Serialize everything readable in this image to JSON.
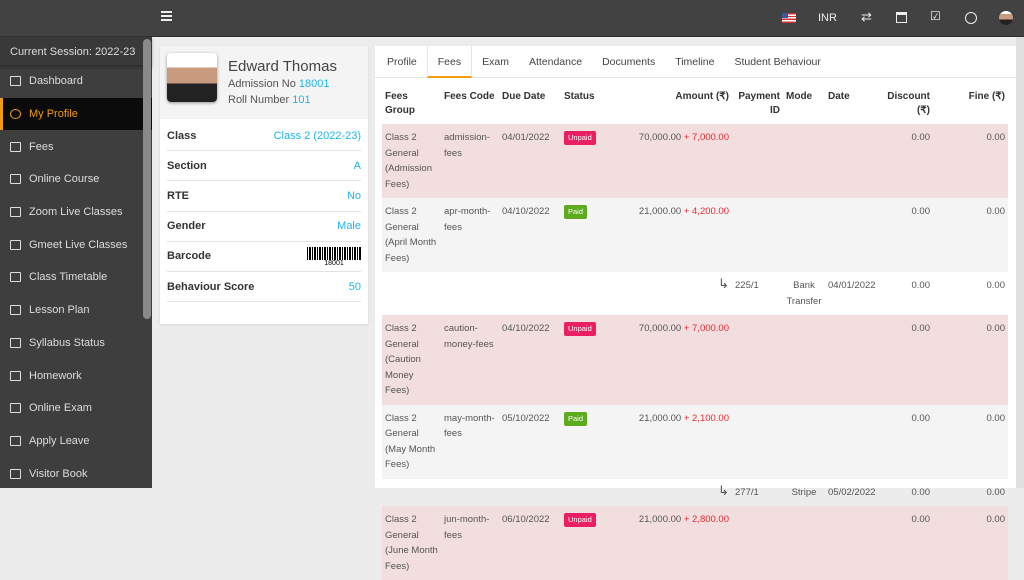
{
  "topbar": {
    "currency": "INR",
    "icons": [
      "us-flag-icon",
      "exchange-icon",
      "calendar-icon",
      "task-check-icon",
      "whatsapp-icon",
      "user-avatar-icon"
    ]
  },
  "sidebar": {
    "session": "Current Session: 2022-23",
    "items": [
      {
        "label": "Dashboard",
        "icon": "monitor-icon"
      },
      {
        "label": "My Profile",
        "icon": "user-plus-icon",
        "active": true
      },
      {
        "label": "Fees",
        "icon": "money-icon"
      },
      {
        "label": "Online Course",
        "icon": "file-image-icon"
      },
      {
        "label": "Zoom Live Classes",
        "icon": "video-icon"
      },
      {
        "label": "Gmeet Live Classes",
        "icon": "video-icon"
      },
      {
        "label": "Class Timetable",
        "icon": "calendar-icon"
      },
      {
        "label": "Lesson Plan",
        "icon": "list-icon"
      },
      {
        "label": "Syllabus Status",
        "icon": "list-check-icon"
      },
      {
        "label": "Homework",
        "icon": "flask-icon"
      },
      {
        "label": "Online Exam",
        "icon": "rss-icon"
      },
      {
        "label": "Apply Leave",
        "icon": "check-square-icon"
      },
      {
        "label": "Visitor Book",
        "icon": "check-square-icon"
      }
    ]
  },
  "profile": {
    "name": "Edward Thomas",
    "admission_label": "Admission No",
    "admission_no": "18001",
    "roll_label": "Roll Number",
    "roll_no": "101",
    "rows": [
      {
        "label": "Class",
        "value": "Class 2 (2022-23)"
      },
      {
        "label": "Section",
        "value": "A"
      },
      {
        "label": "RTE",
        "value": "No"
      },
      {
        "label": "Gender",
        "value": "Male"
      },
      {
        "label": "Barcode",
        "value": "18001"
      },
      {
        "label": "Behaviour Score",
        "value": "50"
      }
    ]
  },
  "tabs": [
    "Profile",
    "Fees",
    "Exam",
    "Attendance",
    "Documents",
    "Timeline",
    "Student Behaviour"
  ],
  "active_tab": "Fees",
  "fees": {
    "headers": [
      "Fees Group",
      "Fees Code",
      "Due Date",
      "Status",
      "Amount (₹)",
      "Payment ID",
      "Mode",
      "Date",
      "Discount (₹)",
      "Fine (₹)"
    ],
    "rows": [
      {
        "type": "fee",
        "group": "Class 2 General (Admission Fees)",
        "code": "admission-fees",
        "due": "04/01/2022",
        "status": "Unpaid",
        "amount": "70,000.00",
        "extra": "+ 7,000.00",
        "discount": "0.00",
        "fine": "0.00"
      },
      {
        "type": "fee",
        "group": "Class 2 General (April Month Fees)",
        "code": "apr-month-fees",
        "due": "04/10/2022",
        "status": "Paid",
        "amount": "21,000.00",
        "extra": "+ 4,200.00",
        "discount": "0.00",
        "fine": "0.00"
      },
      {
        "type": "payment",
        "payment_id": "225/1",
        "mode": "Bank Transfer",
        "date": "04/01/2022",
        "discount": "0.00",
        "fine": "0.00"
      },
      {
        "type": "fee",
        "group": "Class 2 General (Caution Money Fees)",
        "code": "caution-money-fees",
        "due": "04/10/2022",
        "status": "Unpaid",
        "amount": "70,000.00",
        "extra": "+ 7,000.00",
        "discount": "0.00",
        "fine": "0.00"
      },
      {
        "type": "fee",
        "group": "Class 2 General (May Month Fees)",
        "code": "may-month-fees",
        "due": "05/10/2022",
        "status": "Paid",
        "amount": "21,000.00",
        "extra": "+ 2,100.00",
        "discount": "0.00",
        "fine": "0.00"
      },
      {
        "type": "payment",
        "payment_id": "277/1",
        "mode": "Stripe",
        "date": "05/02/2022",
        "discount": "0.00",
        "fine": "0.00"
      },
      {
        "type": "fee",
        "group": "Class 2 General (June Month Fees)",
        "code": "jun-month-fees",
        "due": "06/10/2022",
        "status": "Unpaid",
        "amount": "21,000.00",
        "extra": "+ 2,800.00",
        "discount": "0.00",
        "fine": "0.00"
      }
    ]
  },
  "colors": {
    "accent": "#f39c12",
    "link": "#1fb5e8",
    "unpaid_row": "#f2dede",
    "unpaid_badge": "#e91e63",
    "paid_badge": "#5cab1d",
    "fine_text": "#e8272f"
  }
}
